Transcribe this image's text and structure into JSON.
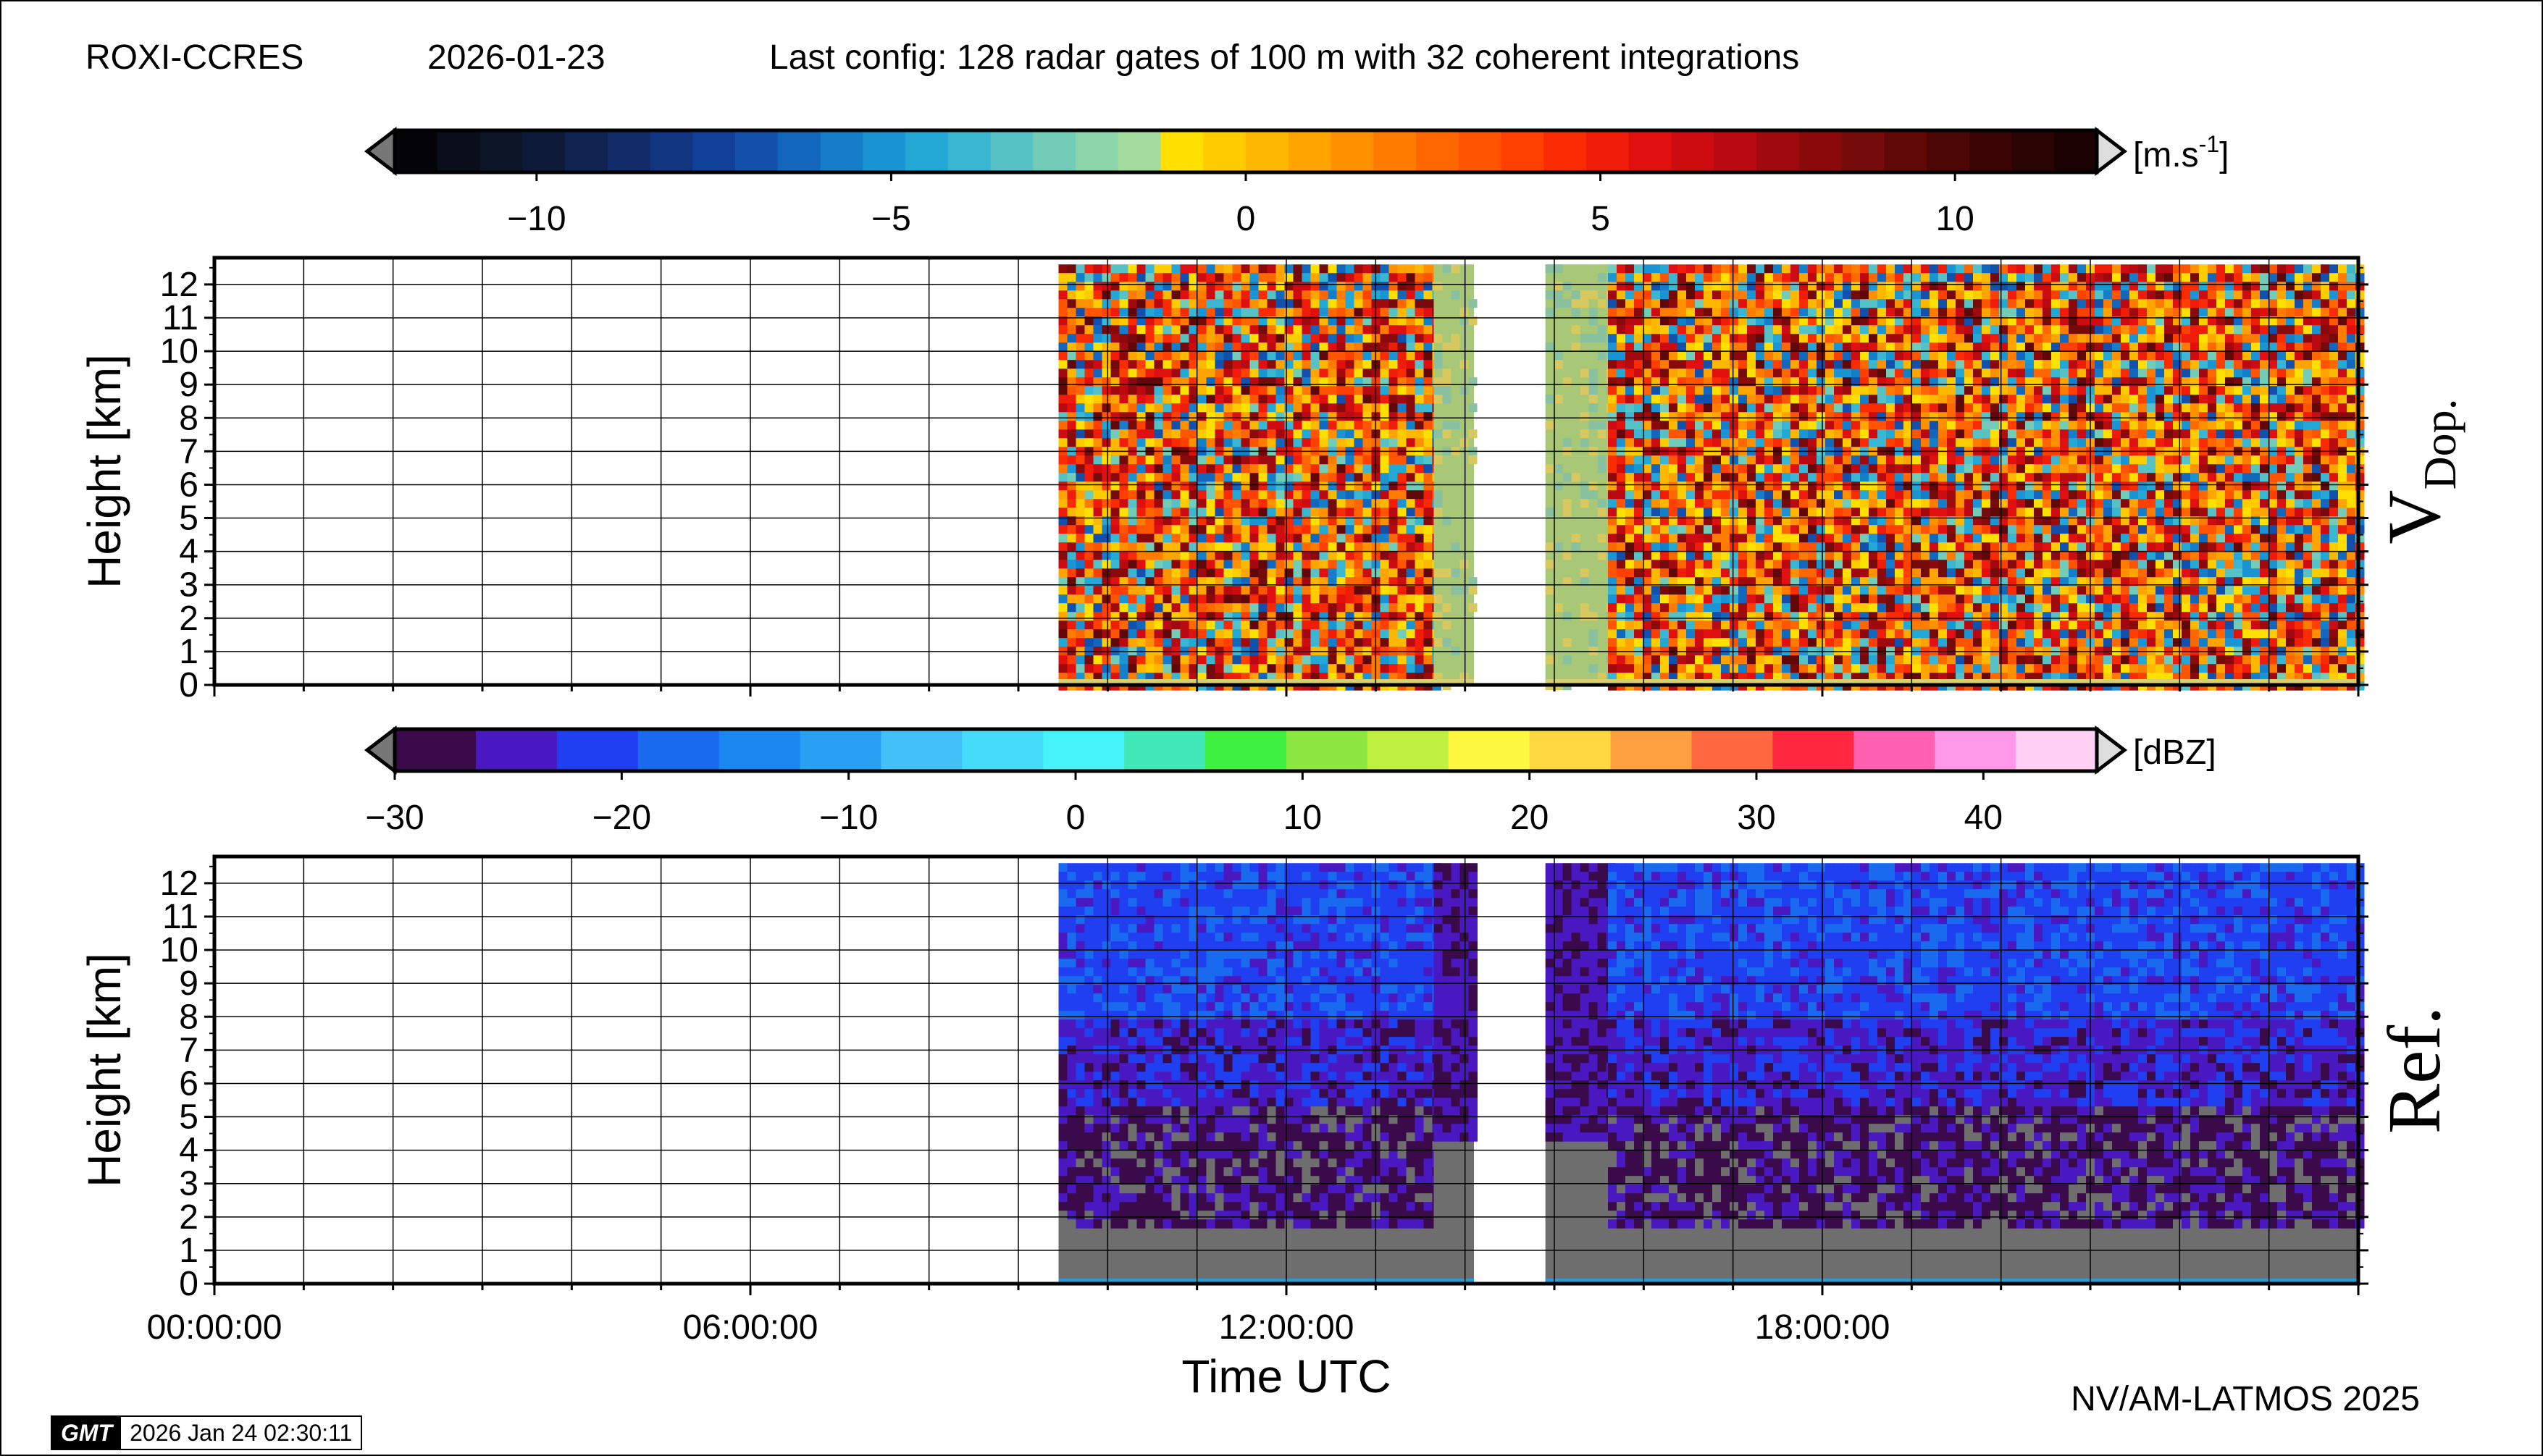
{
  "header": {
    "station": "ROXI-CCRES",
    "date": "2026-01-23",
    "config": "Last config: 128 radar gates of 100 m with 32 coherent integrations"
  },
  "footer": {
    "credit": "NV/AM-LATMOS 2025",
    "gmt_logo": "GMT",
    "gmt_timestamp": "2026 Jan 24 02:30:11"
  },
  "chart_data": [
    {
      "type": "heatmap",
      "name": "doppler-velocity",
      "panel_label": "V",
      "panel_label_sub": "Dop.",
      "ylabel": "Height [km]",
      "xlabel": "",
      "x_range_hours": [
        0,
        24
      ],
      "ylim": [
        0,
        12.8
      ],
      "y_ticks": [
        0,
        1,
        2,
        3,
        4,
        5,
        6,
        7,
        8,
        9,
        10,
        11,
        12
      ],
      "x_ticks_hours": [
        0,
        1,
        2,
        3,
        4,
        5,
        6,
        7,
        8,
        9,
        10,
        11,
        12,
        13,
        14,
        15,
        16,
        17,
        18,
        19,
        20,
        21,
        22,
        23,
        24
      ],
      "grid": true,
      "data_segments_hours": [
        [
          9.45,
          13.65
        ],
        [
          13.65,
          14.1
        ],
        [
          14.9,
          15.6
        ],
        [
          15.6,
          24.0
        ]
      ],
      "data_top_km": 12.6,
      "colorbar": {
        "unit": "[m.s",
        "unit_sup": "-1",
        "unit_end": "]",
        "min": -12,
        "max": 12,
        "ticks": [
          -10,
          -5,
          0,
          5,
          10
        ],
        "tick_labels": [
          "−10",
          "−5",
          "0",
          "5",
          "10"
        ],
        "colors": [
          "#040406",
          "#0a0d1a",
          "#0c1428",
          "#0d1a3a",
          "#0f2250",
          "#112b68",
          "#123580",
          "#124098",
          "#1250ac",
          "#1266bc",
          "#147ec8",
          "#1a94d2",
          "#23a8d6",
          "#3ab6d2",
          "#56c2c6",
          "#72ccb8",
          "#8cd4aa",
          "#a4dca0",
          "#ffe000",
          "#ffcc00",
          "#ffb800",
          "#ffa400",
          "#ff9000",
          "#ff7c00",
          "#ff6800",
          "#ff5400",
          "#ff4000",
          "#f82c00",
          "#ee1c08",
          "#e01010",
          "#cc0c10",
          "#b80a10",
          "#a00a0e",
          "#8a0a0c",
          "#740a0a",
          "#600808",
          "#4c0606",
          "#3a0404",
          "#2a0303",
          "#1a0202"
        ]
      }
    },
    {
      "type": "heatmap",
      "name": "reflectivity",
      "panel_label": "Ref.",
      "ylabel": "Height [km]",
      "xlabel": "Time UTC",
      "x_range_hours": [
        0,
        24
      ],
      "x_tick_labels": [
        "00:00:00",
        "06:00:00",
        "12:00:00",
        "18:00:00"
      ],
      "x_label_hours": [
        0,
        6,
        12,
        18
      ],
      "ylim": [
        0,
        12.8
      ],
      "y_ticks": [
        0,
        1,
        2,
        3,
        4,
        5,
        6,
        7,
        8,
        9,
        10,
        11,
        12
      ],
      "x_ticks_hours": [
        0,
        1,
        2,
        3,
        4,
        5,
        6,
        7,
        8,
        9,
        10,
        11,
        12,
        13,
        14,
        15,
        16,
        17,
        18,
        19,
        20,
        21,
        22,
        23,
        24
      ],
      "grid": true,
      "data_segments_hours": [
        [
          9.45,
          13.65
        ],
        [
          13.65,
          14.1
        ],
        [
          14.9,
          15.6
        ],
        [
          15.6,
          24.0
        ]
      ],
      "data_top_km": 12.6,
      "noise_floor_color": "#6e6e6e",
      "colorbar": {
        "unit": "[dBZ]",
        "min": -30,
        "max": 45,
        "ticks": [
          -30,
          -20,
          -10,
          0,
          10,
          20,
          30,
          40
        ],
        "tick_labels": [
          "−30",
          "−20",
          "−10",
          "0",
          "10",
          "20",
          "30",
          "40"
        ],
        "colors": [
          "#3a0a4a",
          "#4a18c0",
          "#1f3ff0",
          "#1a6af0",
          "#1a86f0",
          "#2aa0f2",
          "#44c0f8",
          "#44dcf8",
          "#44f4f8",
          "#40e8b8",
          "#3ef040",
          "#8ce840",
          "#c0f040",
          "#fff840",
          "#ffd840",
          "#ffa040",
          "#ff6840",
          "#ff2840",
          "#ff60b0",
          "#ff98e8",
          "#ffd0f4"
        ]
      }
    }
  ]
}
